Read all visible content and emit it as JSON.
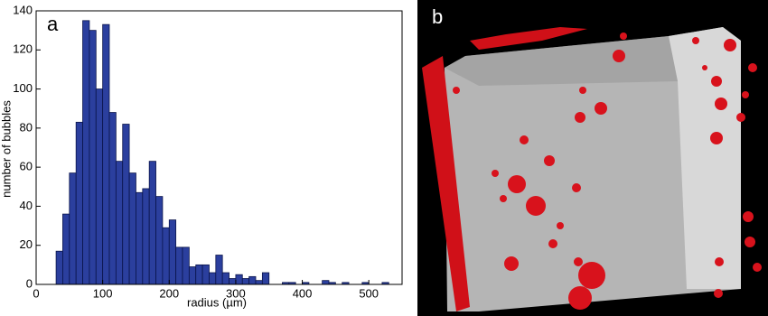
{
  "chart_data": {
    "type": "histogram",
    "panel_label": "a",
    "x_label": "radius (µm)",
    "y_label": "number of bubbles",
    "bins": [
      30,
      40,
      50,
      60,
      70,
      80,
      90,
      100,
      110,
      120,
      130,
      140,
      150,
      160,
      170,
      180,
      190,
      200,
      210,
      220,
      230,
      240,
      250,
      260,
      270,
      280,
      290,
      300,
      310,
      320,
      330,
      340,
      350,
      360,
      370,
      380,
      390,
      400,
      410,
      420,
      430,
      440,
      450,
      460,
      470,
      480,
      490,
      500,
      510,
      520,
      530
    ],
    "values": [
      17,
      36,
      57,
      83,
      135,
      130,
      100,
      133,
      88,
      63,
      82,
      57,
      47,
      49,
      63,
      45,
      29,
      33,
      19,
      19,
      9,
      10,
      10,
      6,
      15,
      6,
      3,
      5,
      3,
      4,
      2,
      6,
      0,
      0,
      1,
      1,
      0,
      1,
      0,
      0,
      2,
      1,
      0,
      1,
      0,
      0,
      1,
      0,
      0,
      1
    ],
    "color": "#2b3f9e",
    "xlim": [
      0,
      550
    ],
    "ylim": [
      0,
      140
    ],
    "xticks": [
      0,
      100,
      200,
      300,
      400,
      500
    ],
    "yticks": [
      0,
      20,
      40,
      60,
      80,
      100,
      120,
      140
    ]
  },
  "image_panel": {
    "label": "b"
  }
}
